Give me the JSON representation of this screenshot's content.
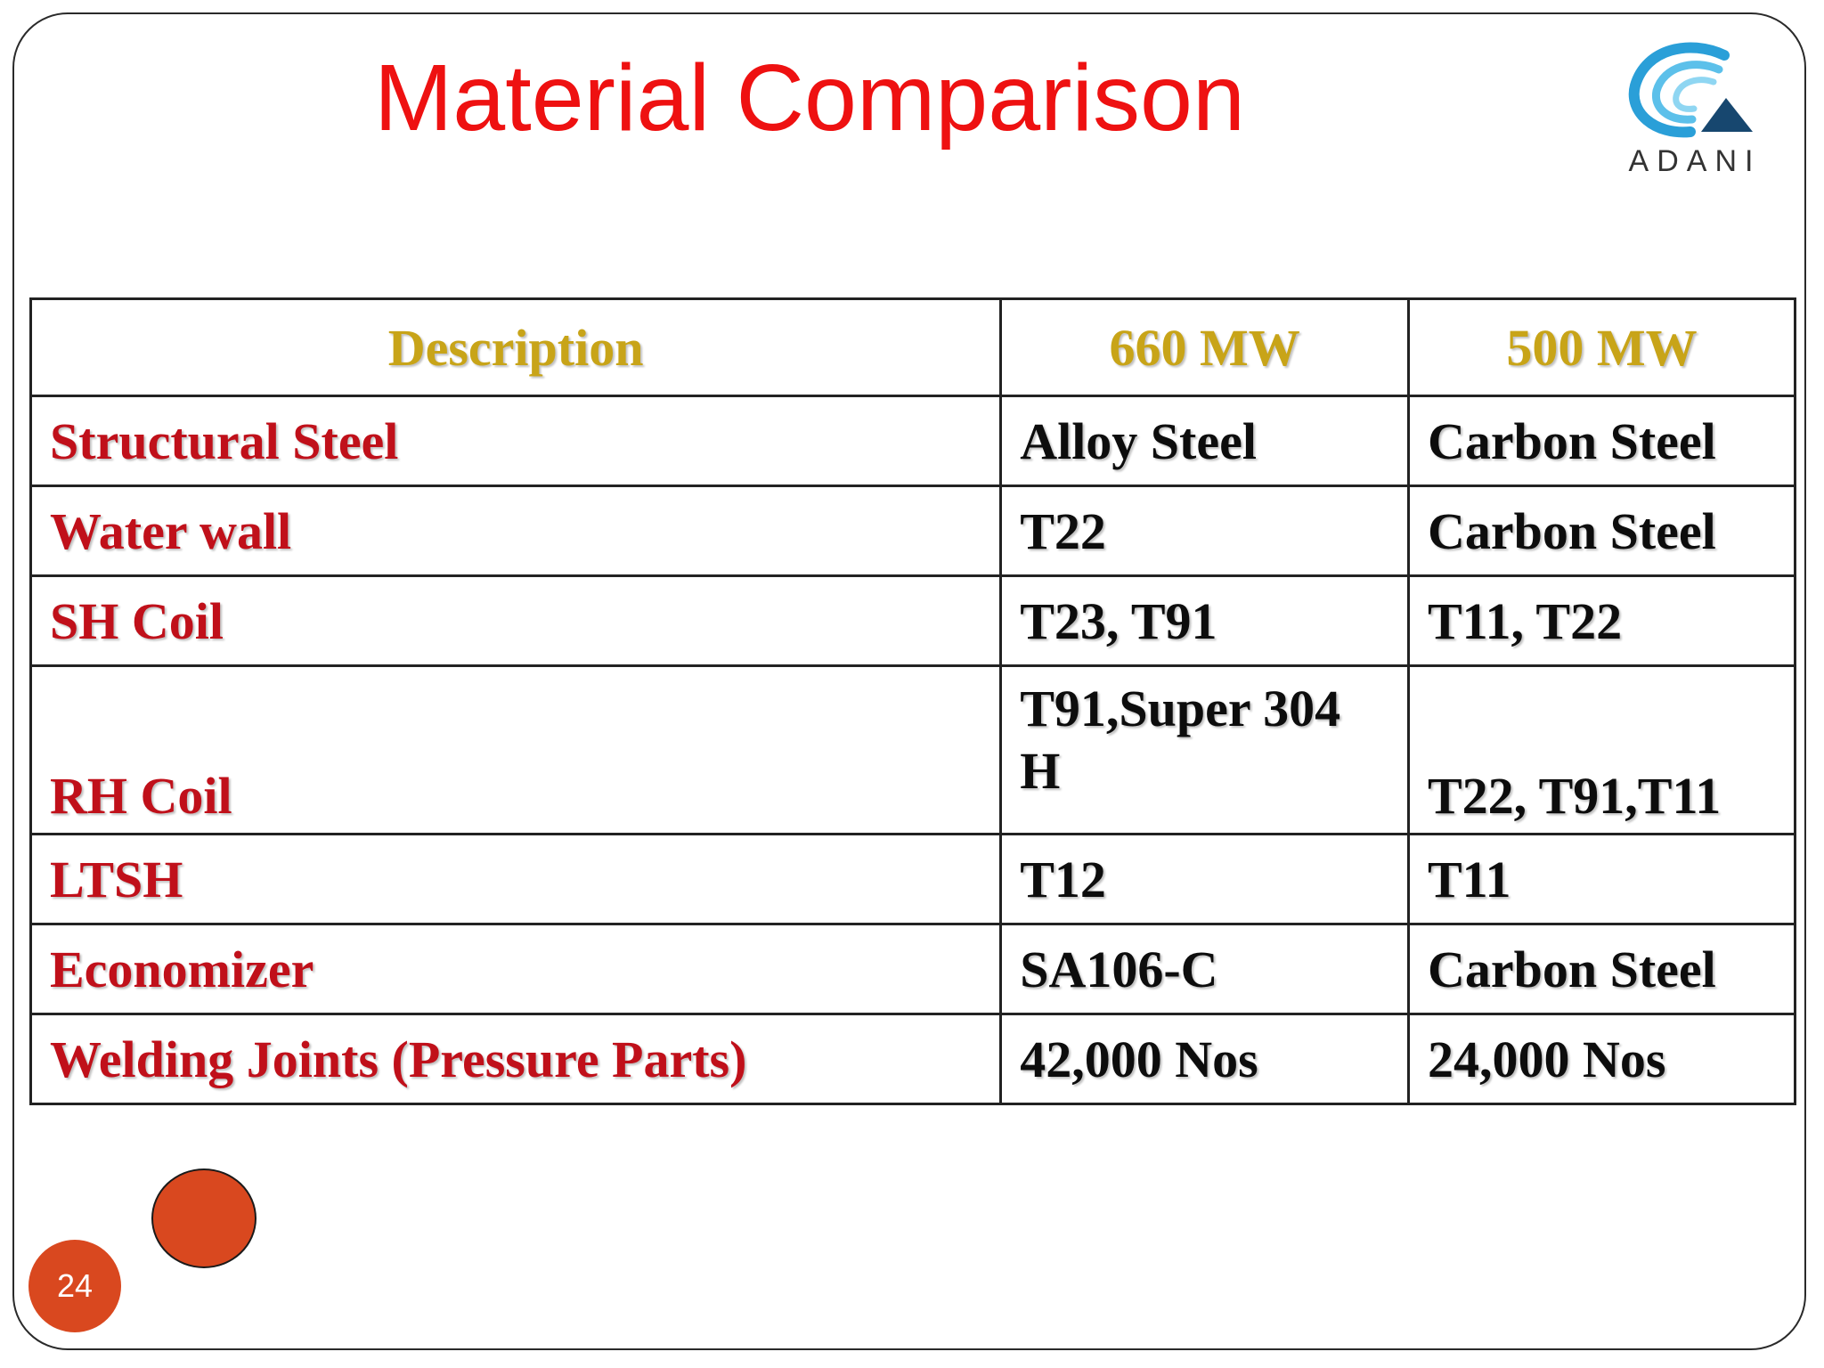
{
  "slide": {
    "title": "Material Comparison",
    "page_number": "24",
    "title_color": "#ee1111",
    "accent_color": "#d9481f"
  },
  "logo": {
    "icon": "adani-logo-icon",
    "text": "ADANI"
  },
  "table": {
    "headers": [
      "Description",
      "660 MW",
      "500 MW"
    ],
    "header_color": "#c8a418",
    "description_color": "#c0101a",
    "rows": [
      {
        "description": "Structural Steel",
        "mw660": "Alloy Steel",
        "mw500": "Carbon Steel"
      },
      {
        "description": "Water wall",
        "mw660": "T22",
        "mw500": "Carbon Steel"
      },
      {
        "description": "SH Coil",
        "mw660": "T23, T91",
        "mw500": "T11, T22"
      },
      {
        "description": "RH Coil",
        "mw660": "T91,Super 304 H",
        "mw500": "T22, T91,T11"
      },
      {
        "description": "LTSH",
        "mw660": "T12",
        "mw500": "T11"
      },
      {
        "description": "Economizer",
        "mw660": "SA106-C",
        "mw500": "Carbon Steel"
      },
      {
        "description": "Welding Joints (Pressure Parts)",
        "mw660": "42,000 Nos",
        "mw500": "24,000 Nos"
      }
    ]
  }
}
